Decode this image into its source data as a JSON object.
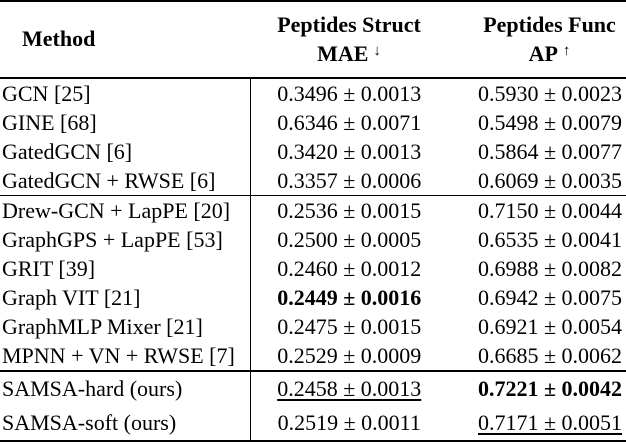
{
  "colors": {
    "text": "#000000",
    "background": "#ffffff",
    "rules": "#000000"
  },
  "table": {
    "header": {
      "method": "Method",
      "col2_line1": "Peptides Struct",
      "col2_line2": "MAE",
      "col2_arrow": "↓",
      "col3_line1": "Peptides Func",
      "col3_line2": "AP",
      "col3_arrow": "↑"
    },
    "groups": [
      {
        "rows": [
          {
            "method": "GCN [25]",
            "mae": "0.3496 ± 0.0013",
            "mae_style": "",
            "ap": "0.5930 ± 0.0023",
            "ap_style": ""
          },
          {
            "method": "GINE [68]",
            "mae": "0.6346 ± 0.0071",
            "mae_style": "",
            "ap": "0.5498 ± 0.0079",
            "ap_style": ""
          },
          {
            "method": "GatedGCN [6]",
            "mae": "0.3420 ± 0.0013",
            "mae_style": "",
            "ap": "0.5864 ± 0.0077",
            "ap_style": ""
          },
          {
            "method": "GatedGCN + RWSE [6]",
            "mae": "0.3357 ± 0.0006",
            "mae_style": "",
            "ap": "0.6069 ± 0.0035",
            "ap_style": ""
          }
        ]
      },
      {
        "rows": [
          {
            "method": "Drew-GCN + LapPE [20]",
            "mae": "0.2536 ± 0.0015",
            "mae_style": "",
            "ap": "0.7150 ± 0.0044",
            "ap_style": ""
          },
          {
            "method": "GraphGPS + LapPE [53]",
            "mae": "0.2500 ± 0.0005",
            "mae_style": "",
            "ap": "0.6535 ± 0.0041",
            "ap_style": ""
          },
          {
            "method": "GRIT [39]",
            "mae": "0.2460 ± 0.0012",
            "mae_style": "",
            "ap": "0.6988 ± 0.0082",
            "ap_style": ""
          },
          {
            "method": "Graph VIT [21]",
            "mae": "0.2449 ± 0.0016",
            "mae_style": "bold",
            "ap": "0.6942 ± 0.0075",
            "ap_style": ""
          },
          {
            "method": "GraphMLP Mixer [21]",
            "mae": "0.2475 ± 0.0015",
            "mae_style": "",
            "ap": "0.6921 ± 0.0054",
            "ap_style": ""
          },
          {
            "method": "MPNN + VN + RWSE [7]",
            "mae": "0.2529 ± 0.0009",
            "mae_style": "",
            "ap": "0.6685 ± 0.0062",
            "ap_style": ""
          }
        ]
      },
      {
        "rows": [
          {
            "method": "SAMSA-hard (ours)",
            "mae": "0.2458 ± 0.0013",
            "mae_style": "underline",
            "ap": "0.7221 ± 0.0042",
            "ap_style": "bold"
          },
          {
            "method": "SAMSA-soft (ours)",
            "mae": "0.2519 ± 0.0011",
            "mae_style": "",
            "ap": "0.7171 ± 0.0051",
            "ap_style": "underline"
          }
        ]
      }
    ]
  }
}
